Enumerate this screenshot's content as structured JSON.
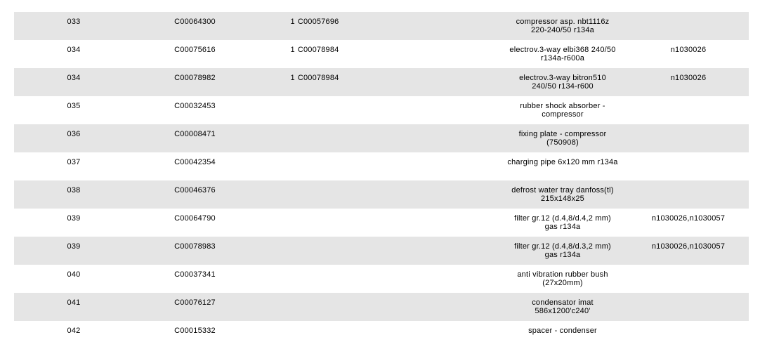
{
  "page": {
    "background_color": "#ffffff",
    "text_color": "#000000"
  },
  "table": {
    "row_colors": {
      "shaded": "#e5e5e5",
      "plain": "#ffffff"
    },
    "columns": [
      "position",
      "part_code",
      "quantity",
      "substitute_code",
      "description",
      "notes"
    ],
    "rows": [
      {
        "pos": "033",
        "code": "C00064300",
        "qty": "1",
        "substitute_code": "C00057696",
        "description": "compressor asp. nbt1116z\n220-240/50 r134a",
        "notes": ""
      },
      {
        "pos": "034",
        "code": "C00075616",
        "qty": "1",
        "substitute_code": "C00078984",
        "description": "electrov.3-way elbi368 240/50\nr134a-r600a",
        "notes": "n1030026"
      },
      {
        "pos": "034",
        "code": "C00078982",
        "qty": "1",
        "substitute_code": "C00078984",
        "description": "electrov.3-way bitron510\n240/50 r134-r600",
        "notes": "n1030026"
      },
      {
        "pos": "035",
        "code": "C00032453",
        "qty": "",
        "substitute_code": "",
        "description": "rubber shock absorber -\ncompressor",
        "notes": ""
      },
      {
        "pos": "036",
        "code": "C00008471",
        "qty": "",
        "substitute_code": "",
        "description": "fixing plate - compressor\n(750908)",
        "notes": ""
      },
      {
        "pos": "037",
        "code": "C00042354",
        "qty": "",
        "substitute_code": "",
        "description": "charging pipe 6x120 mm r134a",
        "notes": ""
      },
      {
        "pos": "038",
        "code": "C00046376",
        "qty": "",
        "substitute_code": "",
        "description": "defrost water tray danfoss(tl)\n215x148x25",
        "notes": ""
      },
      {
        "pos": "039",
        "code": "C00064790",
        "qty": "",
        "substitute_code": "",
        "description": "filter gr.12 (d.4,8/d.4,2 mm)\ngas r134a",
        "notes": "n1030026,n1030057"
      },
      {
        "pos": "039",
        "code": "C00078983",
        "qty": "",
        "substitute_code": "",
        "description": "filter gr.12 (d.4,8/d.3,2 mm)\ngas r134a",
        "notes": "n1030026,n1030057"
      },
      {
        "pos": "040",
        "code": "C00037341",
        "qty": "",
        "substitute_code": "",
        "description": "anti vibration rubber bush\n(27x20mm)",
        "notes": ""
      },
      {
        "pos": "041",
        "code": "C00076127",
        "qty": "",
        "substitute_code": "",
        "description": "condensator imat\n586x1200'c240'",
        "notes": ""
      },
      {
        "pos": "042",
        "code": "C00015332",
        "qty": "",
        "substitute_code": "",
        "description": "spacer - condenser",
        "notes": ""
      }
    ]
  }
}
